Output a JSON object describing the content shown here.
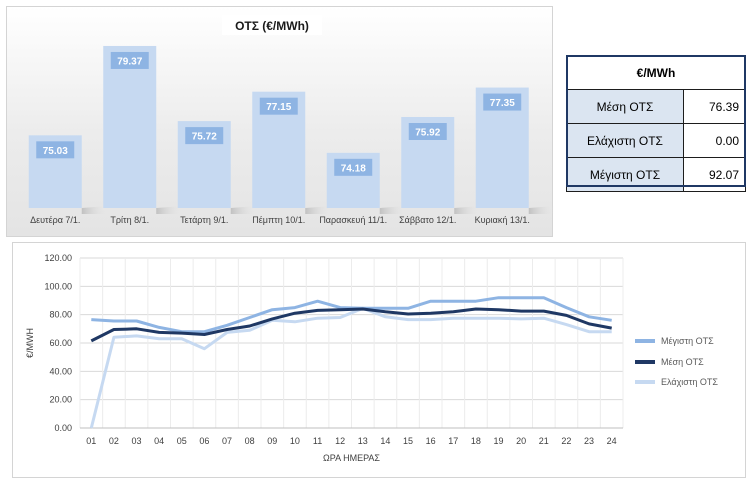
{
  "chart_data": [
    {
      "type": "bar",
      "title": "ΟΤΣ (€/MWh)",
      "categories": [
        "Δευτέρα 7/1.",
        "Τρίτη 8/1.",
        "Τετάρτη 9/1.",
        "Πέμπτη 10/1.",
        "Παρασκευή 11/1.",
        "Σάββατο 12/1.",
        "Κυριακή 13/1."
      ],
      "values": [
        75.03,
        79.37,
        75.72,
        77.15,
        74.18,
        75.92,
        77.35
      ],
      "data_labels": [
        "75.03",
        "79.37",
        "75.72",
        "77.15",
        "74.18",
        "75.92",
        "77.35"
      ],
      "ylim": [
        71.5,
        80.0
      ],
      "grid": false,
      "colors": {
        "bar": "#c6d9f1",
        "label_bg": "#8eb4e3",
        "label_text": "#ffffff"
      }
    },
    {
      "type": "table",
      "header": "€/MWh",
      "rows": [
        {
          "label": "Μέση ΟΤΣ",
          "value": "76.39"
        },
        {
          "label": "Ελάχιστη ΟΤΣ",
          "value": "0.00"
        },
        {
          "label": "Μέγιστη ΟΤΣ",
          "value": "92.07"
        }
      ]
    },
    {
      "type": "line",
      "xlabel": "ΩΡΑ ΗΜΕΡΑΣ",
      "ylabel": "€/MWH",
      "x": [
        "01",
        "02",
        "03",
        "04",
        "05",
        "06",
        "07",
        "08",
        "09",
        "10",
        "11",
        "12",
        "13",
        "14",
        "15",
        "16",
        "17",
        "18",
        "19",
        "20",
        "21",
        "22",
        "23",
        "24"
      ],
      "ylim": [
        0,
        120
      ],
      "yticks": [
        "0.00",
        "20.00",
        "40.00",
        "60.00",
        "80.00",
        "100.00",
        "120.00"
      ],
      "grid": true,
      "legend": "right",
      "series": [
        {
          "name": "Μέγιστη ΟΤΣ",
          "color": "#8eb4e3",
          "values": [
            76.5,
            75.5,
            75.5,
            71,
            68,
            68,
            72.5,
            78,
            83.5,
            85,
            89.5,
            85,
            84.5,
            84.5,
            84.5,
            89.5,
            89.5,
            89.5,
            92,
            92,
            92,
            85,
            78.5,
            76
          ]
        },
        {
          "name": "Μέση ΟΤΣ",
          "color": "#1f3864",
          "values": [
            61.5,
            69.5,
            70,
            67.5,
            67,
            66,
            69.5,
            72,
            77,
            81,
            83,
            83.5,
            84,
            82,
            80.5,
            81,
            82,
            84,
            83.5,
            82.5,
            82.5,
            79.5,
            73.5,
            70.5
          ]
        },
        {
          "name": "Ελάχιστη ΟΤΣ",
          "color": "#c6d9f1",
          "values": [
            0,
            64,
            65,
            63,
            63,
            56,
            67.5,
            69,
            76,
            75,
            77.5,
            78,
            84.5,
            78.5,
            76.5,
            76.5,
            77.5,
            77.5,
            77.5,
            77,
            77.5,
            73,
            68,
            68
          ]
        }
      ]
    }
  ]
}
